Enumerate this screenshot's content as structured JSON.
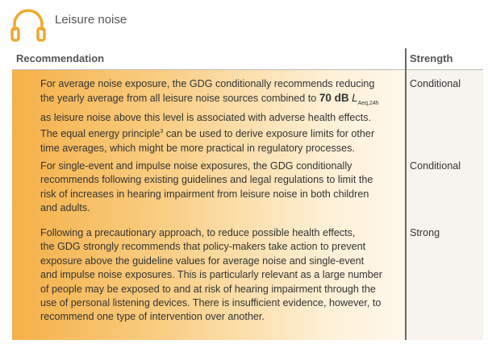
{
  "header": {
    "title": "Leisure noise"
  },
  "table": {
    "columns": [
      "Recommendation",
      "Strength"
    ],
    "rows": [
      {
        "lines": [
          [
            {
              "text": "For average noise exposure, the GDG conditionally recommends reducing"
            }
          ],
          [
            {
              "text": "the yearly average from all leisure noise sources combined to "
            },
            {
              "text": "70 dB",
              "style": "bold"
            },
            {
              "text": " "
            },
            {
              "text": "L",
              "style": "italic"
            },
            {
              "text": "Aeq,24h",
              "style": "sub"
            }
          ],
          [
            {
              "text": "as leisure noise above this level is associated with adverse health effects."
            }
          ],
          [
            {
              "text": "The equal energy principle"
            },
            {
              "text": "3",
              "style": "sup"
            },
            {
              "text": " can be used to derive exposure limits for other"
            }
          ],
          [
            {
              "text": "time averages, which might be more practical in regulatory processes."
            }
          ]
        ],
        "strength": "Conditional"
      },
      {
        "lines": [
          [
            {
              "text": "For single-event and impulse noise exposures, the GDG conditionally"
            }
          ],
          [
            {
              "text": "recommends following existing guidelines and legal regulations to limit the"
            }
          ],
          [
            {
              "text": "risk of increases in hearing impairment from leisure noise in both children"
            }
          ],
          [
            {
              "text": "and adults."
            }
          ]
        ],
        "strength": "Conditional"
      },
      {
        "lines": [
          [
            {
              "text": "Following a precautionary approach, to reduce possible health effects,"
            }
          ],
          [
            {
              "text": "the GDG strongly recommends that policy-makers take action to prevent"
            }
          ],
          [
            {
              "text": "exposure above the guideline values for average noise and single-event"
            }
          ],
          [
            {
              "text": "and impulse noise exposures. This is particularly relevant as a large number"
            }
          ],
          [
            {
              "text": "of people may be exposed to and at risk of hearing impairment through the"
            }
          ],
          [
            {
              "text": "use of personal listening devices. There is insufficient evidence, however, to"
            }
          ],
          [
            {
              "text": "recommend one type of intervention over another."
            }
          ]
        ],
        "strength": "Strong"
      }
    ]
  }
}
